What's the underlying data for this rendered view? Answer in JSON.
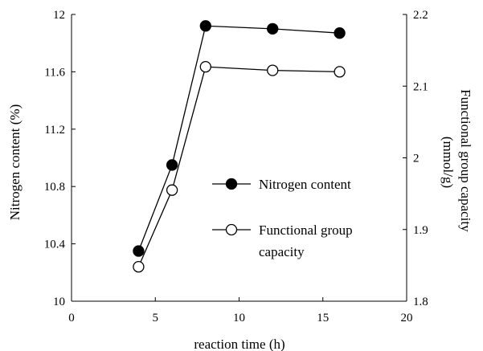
{
  "chart_data": {
    "type": "line",
    "x": [
      4,
      6,
      8,
      12,
      16
    ],
    "xlabel": "reaction time (h)",
    "xlim": [
      0,
      20
    ],
    "xticks": [
      0,
      5,
      10,
      15,
      20
    ],
    "ylabel_left": "Nitrogen content (%)",
    "ylim_left": [
      10,
      12
    ],
    "yticks_left": [
      "10",
      "10.4",
      "10.8",
      "11.2",
      "11.6",
      "12"
    ],
    "ylabel_right": "Functional group capacity (mmol/g)",
    "ylabel_right_lines": [
      "Functional group capacity",
      "(mmol/g)"
    ],
    "ylim_right": [
      1.8,
      2.2
    ],
    "yticks_right": [
      "1.8",
      "1.9",
      "2",
      "2.1",
      "2.2"
    ],
    "grid": false,
    "legend_position": "center-right",
    "series": [
      {
        "name": "Nitrogen content",
        "name_lines": [
          "Nitrogen content"
        ],
        "axis": "left",
        "marker": "filled-circle",
        "values": [
          10.35,
          10.95,
          11.92,
          11.9,
          11.87
        ]
      },
      {
        "name": "Functional group capacity",
        "name_lines": [
          "Functional group",
          "capacity"
        ],
        "axis": "right",
        "marker": "open-circle",
        "values": [
          1.848,
          1.955,
          2.127,
          2.122,
          2.12
        ]
      }
    ]
  }
}
